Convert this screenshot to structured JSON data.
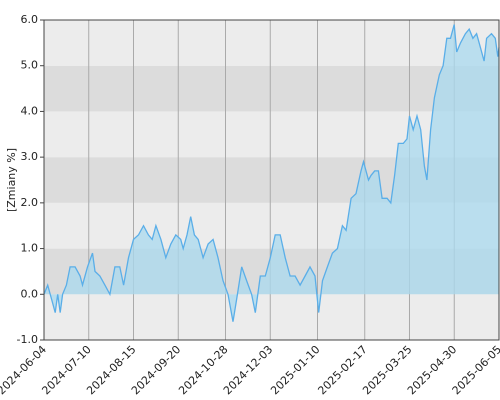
{
  "chart_data": {
    "type": "area",
    "y_label": "[Zmiany %]",
    "color": "#5aaee8",
    "fill_color": "#a9d9ef",
    "band_colors": [
      "#ececec",
      "#dcdcdc"
    ],
    "grid": true,
    "ylim": [
      -1,
      6
    ],
    "yticks": [
      {
        "value": -1,
        "label": "-1.0"
      },
      {
        "value": 0,
        "label": "0.0"
      },
      {
        "value": 1,
        "label": "1.0"
      },
      {
        "value": 2,
        "label": "2.0"
      },
      {
        "value": 3,
        "label": "3.0"
      },
      {
        "value": 4,
        "label": "4.0"
      },
      {
        "value": 5,
        "label": "5.0"
      },
      {
        "value": 6,
        "label": "6.0"
      }
    ],
    "xlim": [
      "2024-06-04",
      "2025-06-05"
    ],
    "xticks": [
      "2024-06-04",
      "2024-07-10",
      "2024-08-15",
      "2024-09-20",
      "2024-10-28",
      "2024-12-03",
      "2025-01-10",
      "2025-02-17",
      "2025-03-25",
      "2025-04-30",
      "2025-06-05"
    ],
    "x": [
      "2024-06-04",
      "2024-06-07",
      "2024-06-10",
      "2024-06-13",
      "2024-06-15",
      "2024-06-17",
      "2024-06-19",
      "2024-06-22",
      "2024-06-25",
      "2024-06-29",
      "2024-07-03",
      "2024-07-05",
      "2024-07-09",
      "2024-07-13",
      "2024-07-15",
      "2024-07-19",
      "2024-07-23",
      "2024-07-27",
      "2024-07-31",
      "2024-08-04",
      "2024-08-07",
      "2024-08-11",
      "2024-08-15",
      "2024-08-19",
      "2024-08-23",
      "2024-08-27",
      "2024-08-30",
      "2024-09-02",
      "2024-09-06",
      "2024-09-10",
      "2024-09-14",
      "2024-09-18",
      "2024-09-22",
      "2024-09-24",
      "2024-09-27",
      "2024-09-30",
      "2024-10-03",
      "2024-10-06",
      "2024-10-10",
      "2024-10-14",
      "2024-10-18",
      "2024-10-22",
      "2024-10-26",
      "2024-10-30",
      "2024-11-03",
      "2024-11-06",
      "2024-11-10",
      "2024-11-14",
      "2024-11-18",
      "2024-11-21",
      "2024-11-25",
      "2024-11-29",
      "2024-12-03",
      "2024-12-07",
      "2024-12-11",
      "2024-12-15",
      "2024-12-19",
      "2024-12-23",
      "2024-12-27",
      "2024-12-31",
      "2025-01-04",
      "2025-01-08",
      "2025-01-11",
      "2025-01-14",
      "2025-01-18",
      "2025-01-22",
      "2025-01-26",
      "2025-01-30",
      "2025-02-02",
      "2025-02-06",
      "2025-02-10",
      "2025-02-14",
      "2025-02-16",
      "2025-02-20",
      "2025-02-22",
      "2025-02-25",
      "2025-02-28",
      "2025-03-03",
      "2025-03-07",
      "2025-03-10",
      "2025-03-13",
      "2025-03-16",
      "2025-03-20",
      "2025-03-23",
      "2025-03-25",
      "2025-03-28",
      "2025-03-31",
      "2025-04-03",
      "2025-04-06",
      "2025-04-08",
      "2025-04-11",
      "2025-04-14",
      "2025-04-18",
      "2025-04-21",
      "2025-04-24",
      "2025-04-27",
      "2025-04-30",
      "2025-05-02",
      "2025-05-05",
      "2025-05-09",
      "2025-05-12",
      "2025-05-15",
      "2025-05-18",
      "2025-05-21",
      "2025-05-24",
      "2025-05-26",
      "2025-05-30",
      "2025-06-02",
      "2025-06-04",
      "2025-06-05"
    ],
    "values": [
      0.0,
      0.2,
      -0.1,
      -0.4,
      0.0,
      -0.4,
      0.0,
      0.2,
      0.6,
      0.6,
      0.4,
      0.2,
      0.6,
      0.9,
      0.5,
      0.4,
      0.2,
      0.0,
      0.6,
      0.6,
      0.2,
      0.8,
      1.2,
      1.3,
      1.5,
      1.3,
      1.2,
      1.5,
      1.2,
      0.8,
      1.1,
      1.3,
      1.2,
      1.0,
      1.3,
      1.7,
      1.3,
      1.2,
      0.8,
      1.1,
      1.2,
      0.8,
      0.3,
      0.0,
      -0.6,
      -0.1,
      0.6,
      0.3,
      0.0,
      -0.4,
      0.4,
      0.4,
      0.8,
      1.3,
      1.3,
      0.8,
      0.4,
      0.4,
      0.2,
      0.4,
      0.6,
      0.4,
      -0.4,
      0.3,
      0.6,
      0.9,
      1.0,
      1.5,
      1.4,
      2.1,
      2.2,
      2.7,
      2.9,
      2.5,
      2.6,
      2.7,
      2.7,
      2.1,
      2.1,
      2.0,
      2.6,
      3.3,
      3.3,
      3.4,
      3.9,
      3.6,
      3.9,
      3.6,
      2.8,
      2.5,
      3.6,
      4.3,
      4.8,
      5.0,
      5.6,
      5.6,
      5.9,
      5.3,
      5.5,
      5.7,
      5.8,
      5.6,
      5.7,
      5.4,
      5.1,
      5.6,
      5.7,
      5.6,
      5.2,
      5.4
    ]
  }
}
